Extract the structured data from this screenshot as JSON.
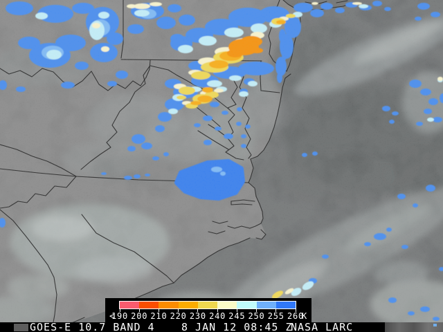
{
  "image_caption": {
    "product_label": "GOES-E 10.7 BAND 4",
    "datetime_label": "8 JAN 12 08:45 Z",
    "credit_label": "NASA LARC"
  },
  "temperature_scale": {
    "prefix_label": "<",
    "tick_labels": [
      "190",
      "200",
      "210",
      "220",
      "230",
      "240",
      "245",
      "250",
      "255",
      "260"
    ],
    "unit_label": "K",
    "segment_colors": [
      "#fa5c6e",
      "#fa4e00",
      "#fb8c00",
      "#fbac00",
      "#f0d84f",
      "#fbfbc8",
      "#c1fbfb",
      "#6fb0fb",
      "#3078f8"
    ]
  },
  "overlay_colors": {
    "cloud_blue": "#4189f0",
    "cloud_blue_solid": "#2f7af0",
    "cloud_light_blue": "#79b8f8",
    "cloud_cyan": "#c2f0fb",
    "cloud_cream": "#fbf6cd",
    "cloud_yellow": "#f2d94e",
    "cloud_amber": "#fbab07",
    "cloud_orange": "#f98e00"
  }
}
